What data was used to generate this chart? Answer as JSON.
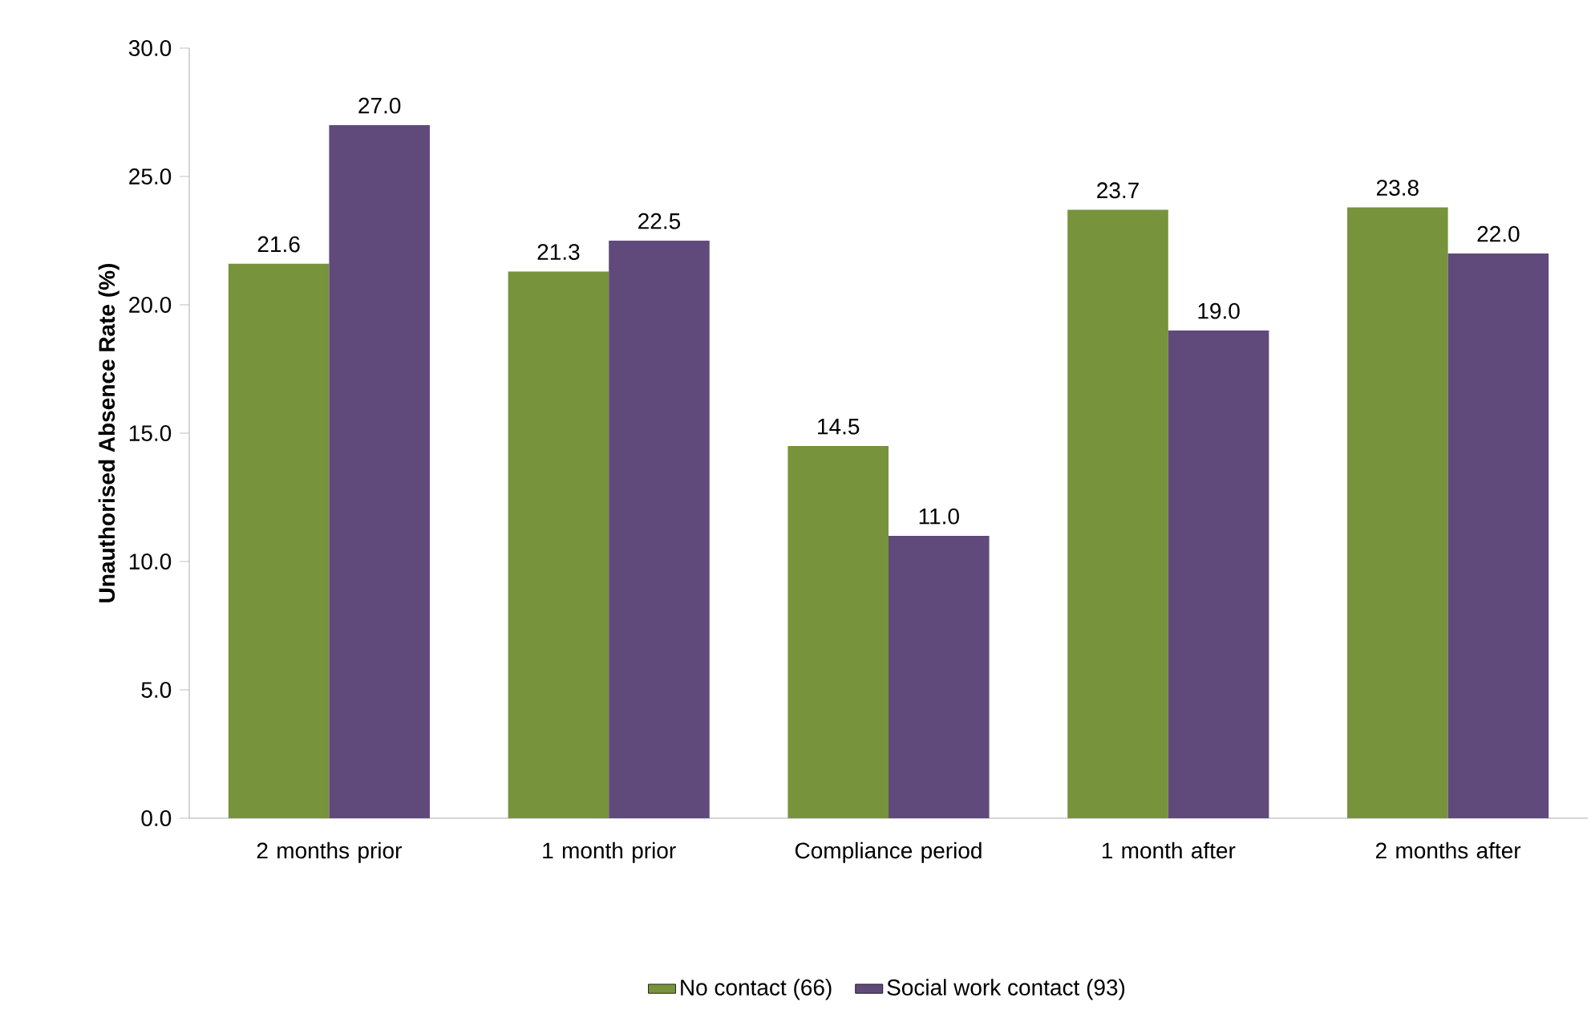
{
  "chart_data": {
    "type": "bar",
    "ylabel": "Unauthorised Absence Rate (%)",
    "categories": [
      "2 months prior",
      "1 month prior",
      "Compliance period",
      "1 month after",
      "2 months after"
    ],
    "series": [
      {
        "name": "No contact (66)",
        "color": "#77933c",
        "values": [
          21.6,
          21.3,
          14.5,
          23.7,
          23.8
        ],
        "value_labels": [
          "21.6",
          "21.3",
          "14.5",
          "23.7",
          "23.8"
        ]
      },
      {
        "name": "Social work contact (93)",
        "color": "#604a7b",
        "values": [
          27.0,
          22.5,
          11.0,
          19.0,
          22.0
        ],
        "value_labels": [
          "27.0",
          "22.5",
          "11.0",
          "19.0",
          "22.0"
        ]
      }
    ],
    "ylim": [
      0,
      30
    ],
    "yticks": [
      {
        "value": 0,
        "label": "0.0"
      },
      {
        "value": 5,
        "label": "5.0"
      },
      {
        "value": 10,
        "label": "10.0"
      },
      {
        "value": 15,
        "label": "15.0"
      },
      {
        "value": 20,
        "label": "20.0"
      },
      {
        "value": 25,
        "label": "25.0"
      },
      {
        "value": 30,
        "label": "30.0"
      }
    ],
    "grid": false,
    "legend": "bottom"
  }
}
